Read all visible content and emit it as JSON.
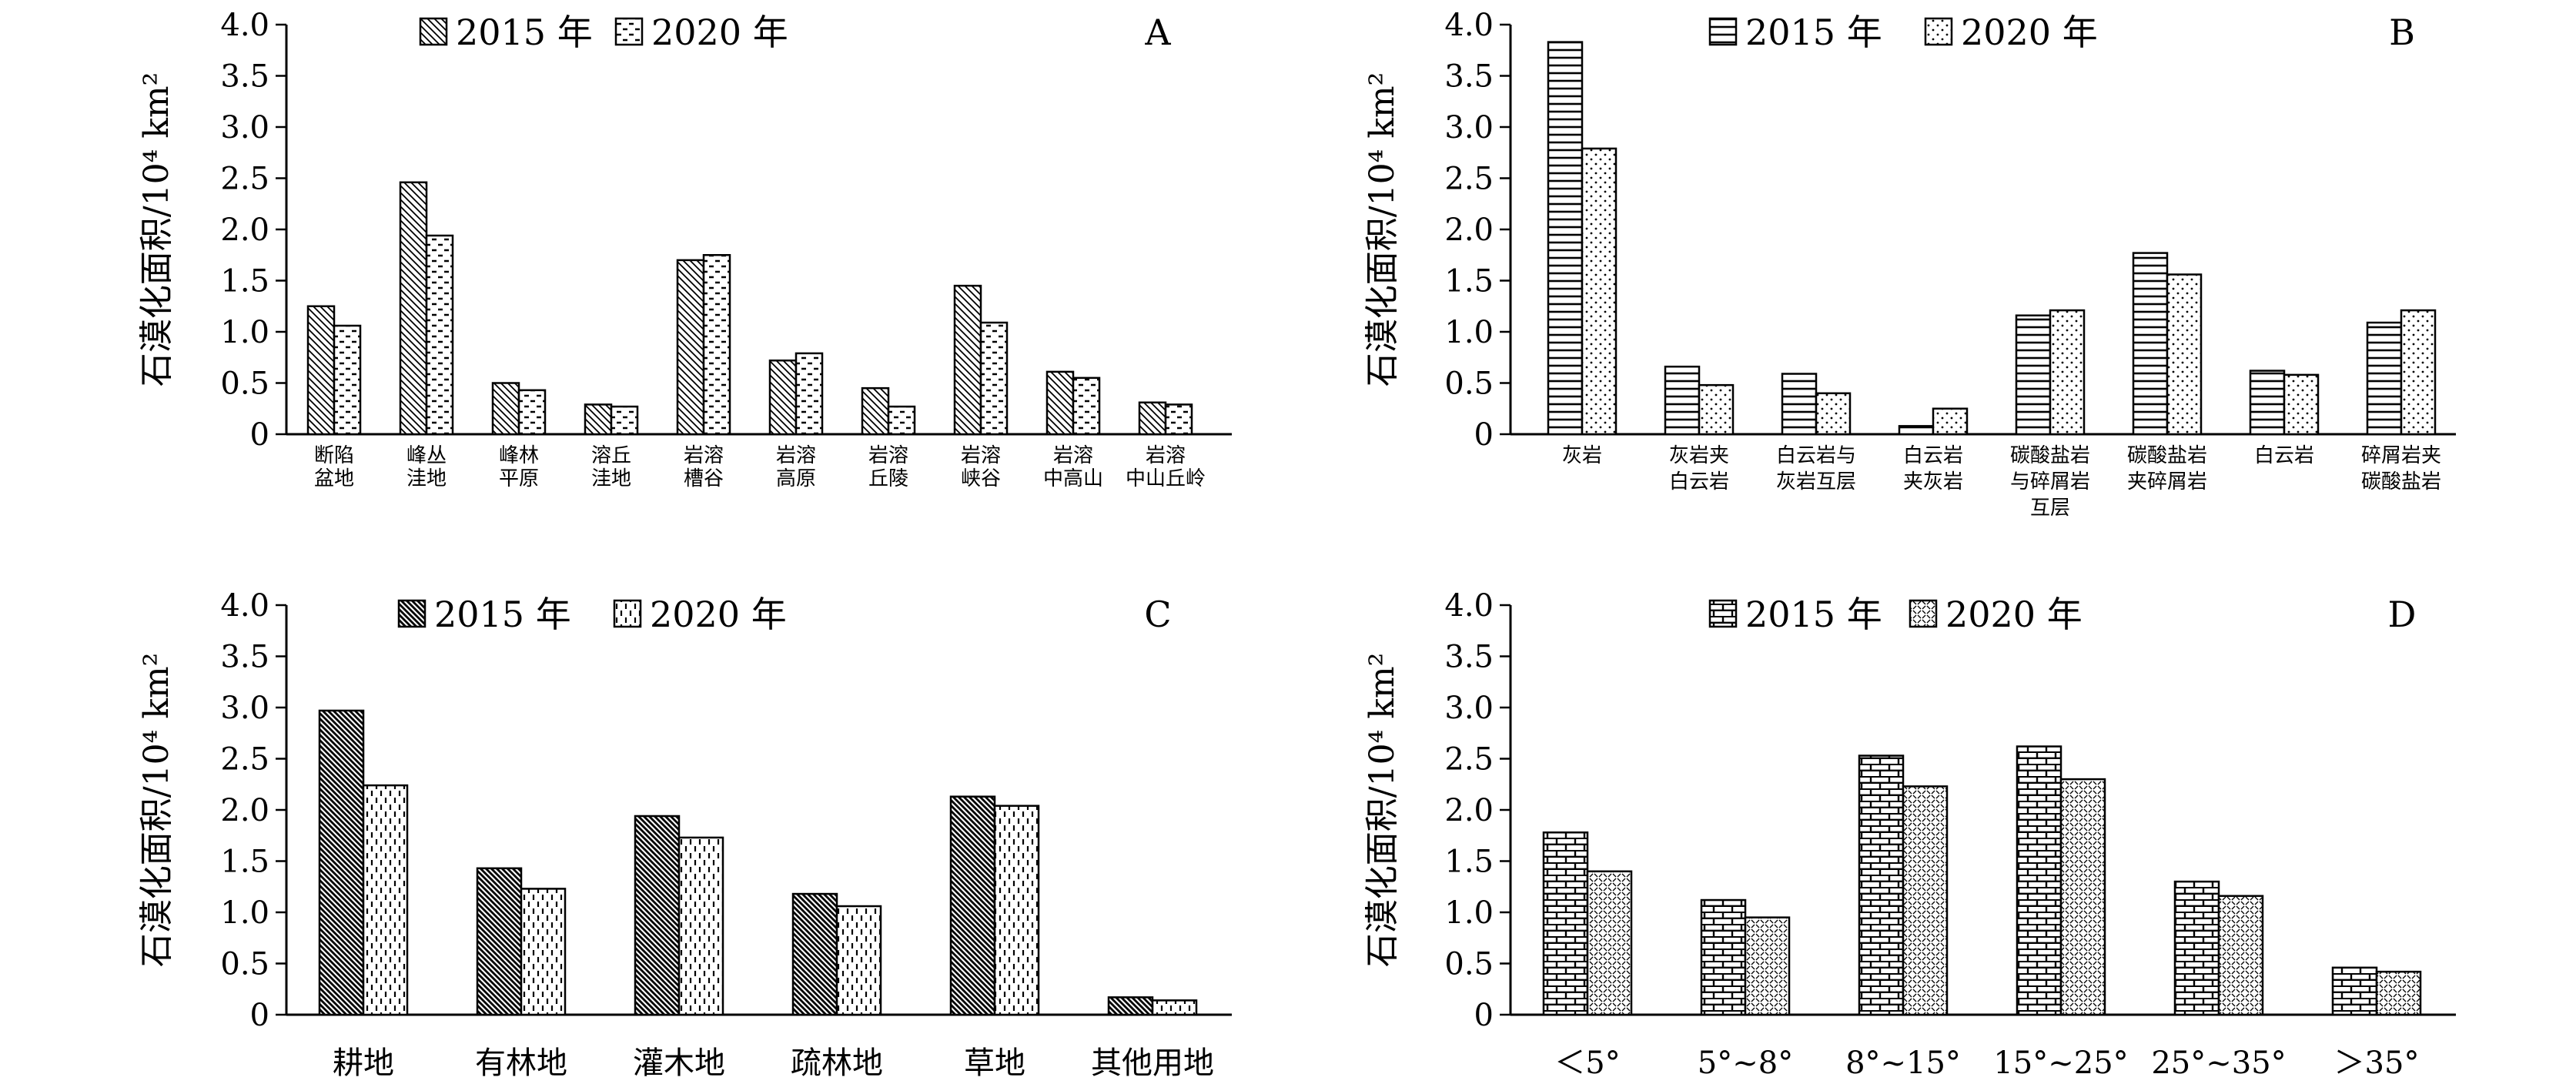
{
  "chart_data": [
    {
      "panel": "A",
      "type": "bar",
      "ylabel": "石漠化面积/10⁴ km²",
      "ylim": [
        0,
        4.0
      ],
      "yticks": [
        "4.0",
        "3.5",
        "3.0",
        "2.5",
        "2.0",
        "1.5",
        "1.0",
        "0.5",
        "0"
      ],
      "legend_placement": "top-left",
      "categories": [
        [
          "断陷",
          "盆地"
        ],
        [
          "峰丛",
          "洼地"
        ],
        [
          "峰林",
          "平原"
        ],
        [
          "溶丘",
          "洼地"
        ],
        [
          "岩溶",
          "槽谷"
        ],
        [
          "岩溶",
          "高原"
        ],
        [
          "岩溶",
          "丘陵"
        ],
        [
          "岩溶",
          "峡谷"
        ],
        [
          "岩溶",
          "中高山"
        ],
        [
          "岩溶",
          "中山丘岭"
        ]
      ],
      "series": [
        {
          "name": "2015 年",
          "pattern": "diagonal",
          "values": [
            1.25,
            2.46,
            0.5,
            0.29,
            1.7,
            0.72,
            0.45,
            1.45,
            0.61,
            0.31
          ]
        },
        {
          "name": "2020 年",
          "pattern": "dash",
          "values": [
            1.06,
            1.94,
            0.43,
            0.27,
            1.75,
            0.79,
            0.27,
            1.09,
            0.55,
            0.29
          ]
        }
      ]
    },
    {
      "panel": "B",
      "type": "bar",
      "ylabel": "石漠化面积/10⁴ km²",
      "ylim": [
        0,
        4.0
      ],
      "yticks": [
        "4.0",
        "3.5",
        "3.0",
        "2.5",
        "2.0",
        "1.5",
        "1.0",
        "0.5",
        "0"
      ],
      "legend_placement": "top-left",
      "categories": [
        [
          "灰岩"
        ],
        [
          "灰岩夹",
          "白云岩"
        ],
        [
          "白云岩与",
          "灰岩互层"
        ],
        [
          "白云岩",
          "夹灰岩"
        ],
        [
          "碳酸盐岩",
          "与碎屑岩",
          "互层"
        ],
        [
          "碳酸盐岩",
          "夹碎屑岩"
        ],
        [
          "白云岩"
        ],
        [
          "碎屑岩夹",
          "碳酸盐岩"
        ]
      ],
      "series": [
        {
          "name": "2015 年",
          "pattern": "horizontal",
          "values": [
            3.83,
            0.66,
            0.59,
            0.08,
            1.16,
            1.77,
            0.62,
            1.09
          ]
        },
        {
          "name": "2020 年",
          "pattern": "dots",
          "values": [
            2.79,
            0.48,
            0.4,
            0.25,
            1.21,
            1.56,
            0.58,
            1.21
          ]
        }
      ]
    },
    {
      "panel": "C",
      "type": "bar",
      "ylabel": "石漠化面积/10⁴ km²",
      "ylim": [
        0,
        4.0
      ],
      "yticks": [
        "4.0",
        "3.5",
        "3.0",
        "2.5",
        "2.0",
        "1.5",
        "1.0",
        "0.5",
        "0"
      ],
      "legend_placement": "top-left",
      "categories": [
        [
          "耕地"
        ],
        [
          "有林地"
        ],
        [
          "灌木地"
        ],
        [
          "疏林地"
        ],
        [
          "草地"
        ],
        [
          "其他用地"
        ]
      ],
      "series": [
        {
          "name": "2015 年",
          "pattern": "dense-diagonal",
          "values": [
            2.97,
            1.43,
            1.94,
            1.18,
            2.13,
            0.17
          ]
        },
        {
          "name": "2020 年",
          "pattern": "vertical-dash",
          "values": [
            2.24,
            1.23,
            1.73,
            1.06,
            2.04,
            0.14
          ]
        }
      ]
    },
    {
      "panel": "D",
      "type": "bar",
      "ylabel": "石漠化面积/10⁴ km²",
      "ylim": [
        0,
        4.0
      ],
      "yticks": [
        "4.0",
        "3.5",
        "3.0",
        "2.5",
        "2.0",
        "1.5",
        "1.0",
        "0.5",
        "0"
      ],
      "legend_placement": "top-left",
      "categories": [
        [
          "＜5°"
        ],
        [
          "5°~8°"
        ],
        [
          "8°~15°"
        ],
        [
          "15°~25°"
        ],
        [
          "25°~35°"
        ],
        [
          "＞35°"
        ]
      ],
      "series": [
        {
          "name": "2015 年",
          "pattern": "brick",
          "values": [
            1.78,
            1.12,
            2.53,
            2.62,
            1.3,
            0.46
          ]
        },
        {
          "name": "2020 年",
          "pattern": "weave",
          "values": [
            1.4,
            0.95,
            2.23,
            2.3,
            1.16,
            0.42
          ]
        }
      ]
    }
  ]
}
